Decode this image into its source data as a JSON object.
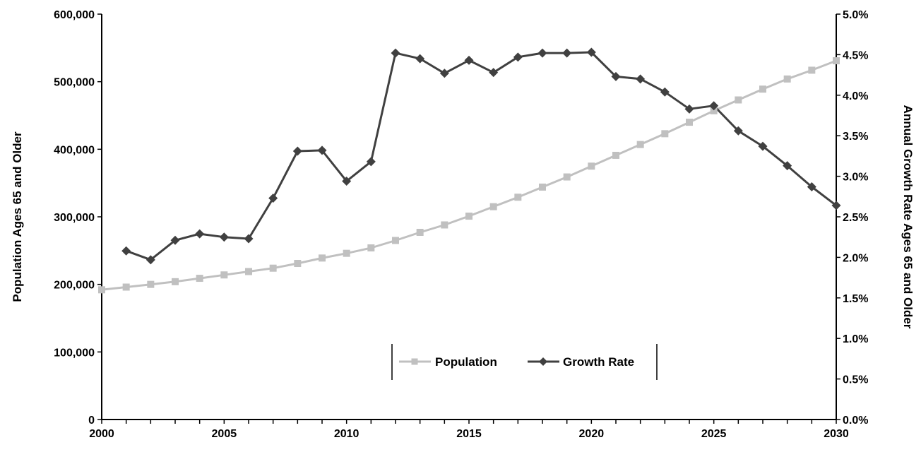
{
  "chart_data": {
    "type": "line",
    "title": "",
    "xlabel": "",
    "ylabel": "Population Ages 65 and Older",
    "y2label": "Annual Growth Rate Ages 65 and Older",
    "xlim": [
      2000,
      2030
    ],
    "ylim": [
      0,
      600000
    ],
    "y2lim": [
      0,
      0.05
    ],
    "x_ticks": [
      "2000",
      "2005",
      "2010",
      "2015",
      "2020",
      "2025",
      "2030"
    ],
    "y_ticks": [
      "0",
      "100,000",
      "200,000",
      "300,000",
      "400,000",
      "500,000",
      "600,000"
    ],
    "y2_ticks": [
      "0.0%",
      "0.5%",
      "1.0%",
      "1.5%",
      "2.0%",
      "2.5%",
      "3.0%",
      "3.5%",
      "4.0%",
      "4.5%",
      "5.0%"
    ],
    "grid": false,
    "legend_position": "bottom-center",
    "series": [
      {
        "name": "Population",
        "axis": "left",
        "color": "#c0c0c0",
        "marker": "square",
        "x": [
          2000,
          2001,
          2002,
          2003,
          2004,
          2005,
          2006,
          2007,
          2008,
          2009,
          2010,
          2011,
          2012,
          2013,
          2014,
          2015,
          2016,
          2017,
          2018,
          2019,
          2020,
          2021,
          2022,
          2023,
          2024,
          2025,
          2026,
          2027,
          2028,
          2029,
          2030
        ],
        "values": [
          192000,
          196000,
          200000,
          204000,
          209000,
          214000,
          219000,
          224000,
          231000,
          239000,
          246000,
          254000,
          265000,
          277000,
          288000,
          301000,
          315000,
          329000,
          344000,
          359000,
          375000,
          391000,
          407000,
          423000,
          440000,
          457000,
          473000,
          489000,
          504000,
          517000,
          531000
        ]
      },
      {
        "name": "Growth Rate",
        "axis": "right",
        "color": "#404040",
        "marker": "diamond",
        "x": [
          2001,
          2002,
          2003,
          2004,
          2005,
          2006,
          2007,
          2008,
          2009,
          2010,
          2011,
          2012,
          2013,
          2014,
          2015,
          2016,
          2017,
          2018,
          2019,
          2020,
          2021,
          2022,
          2023,
          2024,
          2025,
          2026,
          2027,
          2028,
          2029,
          2030
        ],
        "values": [
          0.0208,
          0.0197,
          0.0221,
          0.0229,
          0.0225,
          0.0223,
          0.0273,
          0.0331,
          0.0332,
          0.0294,
          0.0318,
          0.0452,
          0.0445,
          0.0427,
          0.0443,
          0.0428,
          0.0447,
          0.0452,
          0.0452,
          0.0453,
          0.0423,
          0.042,
          0.0404,
          0.0383,
          0.0387,
          0.0356,
          0.0337,
          0.0313,
          0.0287,
          0.0264
        ]
      }
    ]
  }
}
